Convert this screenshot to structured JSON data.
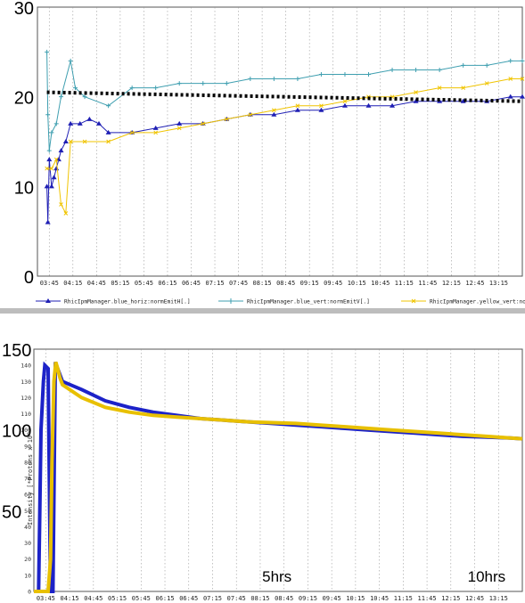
{
  "colors": {
    "blue_horiz": "#1f1fb4",
    "blue_vert": "#3f9fb0",
    "yellow_vert": "#f0c400",
    "trend": "#000000",
    "intensity_blue": "#1c22c8",
    "intensity_yellow": "#e8c000",
    "grid": "#9a9a9a"
  },
  "chart_data": [
    {
      "type": "line",
      "x_tick_labels": [
        "03:45",
        "04:15",
        "04:45",
        "05:15",
        "05:45",
        "06:15",
        "06:45",
        "07:15",
        "07:45",
        "08:15",
        "08:45",
        "09:15",
        "09:45",
        "10:15",
        "10:45",
        "11:15",
        "11:45",
        "12:15",
        "12:45",
        "13:15"
      ],
      "x_range_hours": [
        3.5,
        13.75
      ],
      "ylim": [
        0,
        30
      ],
      "y_tick_labels": [
        {
          "value": 0,
          "label": "0"
        },
        {
          "value": 10,
          "label": "10"
        },
        {
          "value": 20,
          "label": "20"
        },
        {
          "value": 30,
          "label": "30"
        }
      ],
      "grid": "vertical-dotted",
      "legend_position": "bottom",
      "series": [
        {
          "name": "RhicIpmManager.blue_horiz:normEmitH[.]",
          "color_key": "blue_horiz",
          "marker": "triangle",
          "points": [
            [
              3.7,
              10
            ],
            [
              3.72,
              6
            ],
            [
              3.75,
              13
            ],
            [
              3.8,
              10
            ],
            [
              3.85,
              11
            ],
            [
              3.9,
              12
            ],
            [
              3.95,
              13
            ],
            [
              4.0,
              14
            ],
            [
              4.1,
              15
            ],
            [
              4.2,
              17
            ],
            [
              4.4,
              17
            ],
            [
              4.6,
              17.5
            ],
            [
              4.8,
              17
            ],
            [
              5.0,
              16
            ],
            [
              5.5,
              16
            ],
            [
              6.0,
              16.5
            ],
            [
              6.5,
              17
            ],
            [
              7.0,
              17
            ],
            [
              7.5,
              17.5
            ],
            [
              8.0,
              18
            ],
            [
              8.5,
              18
            ],
            [
              9.0,
              18.5
            ],
            [
              9.5,
              18.5
            ],
            [
              10.0,
              19
            ],
            [
              10.5,
              19
            ],
            [
              11.0,
              19
            ],
            [
              11.5,
              19.5
            ],
            [
              12.0,
              19.5
            ],
            [
              12.5,
              19.5
            ],
            [
              13.0,
              19.5
            ],
            [
              13.5,
              20
            ],
            [
              13.75,
              20
            ]
          ]
        },
        {
          "name": "RhicIpmManager.blue_vert:normEmitV[.]",
          "color_key": "blue_vert",
          "marker": "plus",
          "points": [
            [
              3.7,
              25
            ],
            [
              3.72,
              18
            ],
            [
              3.75,
              14
            ],
            [
              3.8,
              16
            ],
            [
              3.9,
              17
            ],
            [
              4.0,
              20
            ],
            [
              4.2,
              24
            ],
            [
              4.3,
              21
            ],
            [
              4.5,
              20
            ],
            [
              5.0,
              19
            ],
            [
              5.5,
              21
            ],
            [
              6.0,
              21
            ],
            [
              6.5,
              21.5
            ],
            [
              7.0,
              21.5
            ],
            [
              7.5,
              21.5
            ],
            [
              8.0,
              22
            ],
            [
              8.5,
              22
            ],
            [
              9.0,
              22
            ],
            [
              9.5,
              22.5
            ],
            [
              10.0,
              22.5
            ],
            [
              10.5,
              22.5
            ],
            [
              11.0,
              23
            ],
            [
              11.5,
              23
            ],
            [
              12.0,
              23
            ],
            [
              12.5,
              23.5
            ],
            [
              13.0,
              23.5
            ],
            [
              13.5,
              24
            ],
            [
              13.75,
              24
            ]
          ]
        },
        {
          "name": "RhicIpmManager.yellow_vert:normEmitV[.]",
          "color_key": "yellow_vert",
          "marker": "cross",
          "points": [
            [
              3.7,
              12
            ],
            [
              3.8,
              12
            ],
            [
              3.9,
              13
            ],
            [
              4.0,
              8
            ],
            [
              4.1,
              7
            ],
            [
              4.2,
              15
            ],
            [
              4.5,
              15
            ],
            [
              5.0,
              15
            ],
            [
              5.5,
              16
            ],
            [
              6.0,
              16
            ],
            [
              6.5,
              16.5
            ],
            [
              7.0,
              17
            ],
            [
              7.5,
              17.5
            ],
            [
              8.0,
              18
            ],
            [
              8.5,
              18.5
            ],
            [
              9.0,
              19
            ],
            [
              9.5,
              19
            ],
            [
              10.0,
              19.5
            ],
            [
              10.5,
              20
            ],
            [
              11.0,
              20
            ],
            [
              11.5,
              20.5
            ],
            [
              12.0,
              21
            ],
            [
              12.5,
              21
            ],
            [
              13.0,
              21.5
            ],
            [
              13.5,
              22
            ],
            [
              13.75,
              22
            ]
          ]
        },
        {
          "color_key": "trend",
          "style": "dotted-thick",
          "points": [
            [
              3.7,
              20.5
            ],
            [
              13.75,
              19.5
            ]
          ]
        }
      ]
    },
    {
      "type": "line",
      "ylabel": "Intensity [*Protons x 10^",
      "x_tick_labels": [
        "03:45",
        "04:15",
        "04:45",
        "05:15",
        "05:45",
        "06:15",
        "06:45",
        "07:15",
        "07:45",
        "08:15",
        "08:45",
        "09:15",
        "09:45",
        "10:15",
        "10:45",
        "11:15",
        "11:45",
        "12:15",
        "12:45",
        "13:15"
      ],
      "x_range_hours": [
        3.5,
        13.75
      ],
      "ylim": [
        0,
        150
      ],
      "y_tick_labels_large": [
        {
          "value": 50,
          "label": "50"
        },
        {
          "value": 100,
          "label": "100"
        },
        {
          "value": 150,
          "label": "150"
        }
      ],
      "y_tick_labels_small": [
        {
          "value": 0,
          "label": "0"
        },
        {
          "value": 10,
          "label": "10"
        },
        {
          "value": 20,
          "label": "20"
        },
        {
          "value": 30,
          "label": "30"
        },
        {
          "value": 40,
          "label": "40"
        },
        {
          "value": 50,
          "label": "50"
        },
        {
          "value": 60,
          "label": "60"
        },
        {
          "value": 70,
          "label": "70"
        },
        {
          "value": 80,
          "label": "80"
        },
        {
          "value": 90,
          "label": "90"
        },
        {
          "value": 100,
          "label": "100"
        },
        {
          "value": 110,
          "label": "110"
        },
        {
          "value": 120,
          "label": "120"
        },
        {
          "value": 130,
          "label": "130"
        },
        {
          "value": 140,
          "label": "140"
        }
      ],
      "grid": "vertical-dotted",
      "annotations": [
        {
          "text": "5hrs",
          "x_hours": 8.6,
          "y": 6
        },
        {
          "text": "10hrs",
          "x_hours": 13.0,
          "y": 6
        }
      ],
      "series": [
        {
          "color_key": "intensity_blue",
          "points": [
            [
              3.5,
              0
            ],
            [
              3.6,
              0
            ],
            [
              3.62,
              40
            ],
            [
              3.65,
              100
            ],
            [
              3.7,
              130
            ],
            [
              3.73,
              140
            ],
            [
              3.8,
              138
            ],
            [
              3.85,
              0
            ],
            [
              3.9,
              0
            ],
            [
              3.95,
              142
            ],
            [
              4.0,
              138
            ],
            [
              4.1,
              130
            ],
            [
              4.5,
              125
            ],
            [
              5.0,
              118
            ],
            [
              5.5,
              114
            ],
            [
              6.0,
              111
            ],
            [
              6.5,
              109
            ],
            [
              7.0,
              107
            ],
            [
              7.5,
              106
            ],
            [
              8.0,
              105
            ],
            [
              8.5,
              104
            ],
            [
              9.0,
              103
            ],
            [
              9.5,
              102
            ],
            [
              10.0,
              101
            ],
            [
              10.5,
              100
            ],
            [
              11.0,
              99
            ],
            [
              11.5,
              98
            ],
            [
              12.0,
              97
            ],
            [
              12.5,
              96
            ],
            [
              13.0,
              95.5
            ],
            [
              13.5,
              95
            ],
            [
              13.75,
              94.5
            ]
          ]
        },
        {
          "color_key": "intensity_yellow",
          "points": [
            [
              3.5,
              0
            ],
            [
              3.8,
              0
            ],
            [
              3.85,
              20
            ],
            [
              3.88,
              80
            ],
            [
              3.92,
              130
            ],
            [
              3.96,
              142
            ],
            [
              4.0,
              138
            ],
            [
              4.05,
              132
            ],
            [
              4.1,
              128
            ],
            [
              4.5,
              120
            ],
            [
              5.0,
              114
            ],
            [
              5.5,
              111
            ],
            [
              6.0,
              109
            ],
            [
              6.5,
              108
            ],
            [
              7.0,
              107
            ],
            [
              7.5,
              106
            ],
            [
              8.0,
              105
            ],
            [
              8.5,
              104.5
            ],
            [
              9.0,
              104
            ],
            [
              9.5,
              103
            ],
            [
              10.0,
              102
            ],
            [
              10.5,
              101
            ],
            [
              11.0,
              100
            ],
            [
              11.5,
              99
            ],
            [
              12.0,
              98
            ],
            [
              12.5,
              97
            ],
            [
              13.0,
              96
            ],
            [
              13.5,
              95
            ],
            [
              13.75,
              94.5
            ]
          ]
        }
      ]
    }
  ]
}
